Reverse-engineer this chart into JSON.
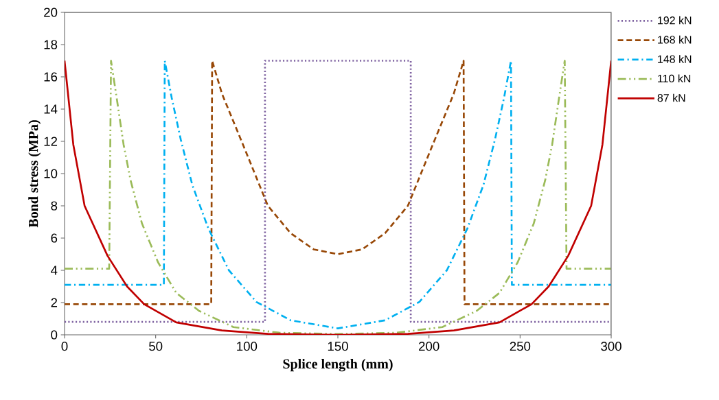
{
  "chart_data": {
    "type": "line",
    "xlabel": "Splice length (mm)",
    "ylabel": "Bond stress (MPa)",
    "xlim": [
      0,
      300
    ],
    "ylim": [
      0,
      20
    ],
    "xticks": [
      0,
      50,
      100,
      150,
      200,
      250,
      300
    ],
    "yticks": [
      0,
      2,
      4,
      6,
      8,
      10,
      12,
      14,
      16,
      18,
      20
    ],
    "grid": false,
    "legend": "right",
    "marker": "none",
    "series": [
      {
        "name": "192 kN",
        "color": "#8064a2",
        "line_style": "dotted",
        "x": [
          0,
          110,
          110,
          190,
          190,
          300
        ],
        "values": [
          0.8,
          0.8,
          17,
          17,
          0.8,
          0.8
        ]
      },
      {
        "name": "168 kN",
        "color": "#984807",
        "line_style": "dashed",
        "x": [
          0,
          80.5,
          81,
          86.4,
          99,
          111.6,
          124.1,
          136.7,
          150,
          163.3,
          175.9,
          188.4,
          201,
          213.6,
          219,
          219.5,
          300
        ],
        "values": [
          1.9,
          1.9,
          17,
          14.95,
          11.5,
          8.0,
          6.3,
          5.3,
          5.0,
          5.3,
          6.3,
          8.0,
          11.5,
          14.95,
          17,
          1.9,
          1.9
        ]
      },
      {
        "name": "148 kN",
        "color": "#00b0f0",
        "line_style": "dashdot",
        "x": [
          0,
          54.5,
          55,
          58.8,
          63.8,
          70.1,
          78.9,
          90.2,
          105.3,
          124.1,
          150,
          175.9,
          194.7,
          209.8,
          221.1,
          229.9,
          236.2,
          241.2,
          245,
          245.5,
          300
        ],
        "values": [
          3.1,
          3.1,
          17,
          14.7,
          12.1,
          9.3,
          6.6,
          4.0,
          2.04,
          0.9,
          0.4,
          0.9,
          2.04,
          4.0,
          6.6,
          9.3,
          12.1,
          14.7,
          17,
          3.1,
          3.1
        ]
      },
      {
        "name": "110 kN",
        "color": "#9bbb59",
        "line_style": "dashdotdot",
        "x": [
          0,
          24.5,
          25.5,
          28.6,
          32.4,
          36.2,
          42.5,
          51.3,
          61.3,
          73.9,
          92.7,
          117.8,
          150,
          182.2,
          207.3,
          226.1,
          238.7,
          248.7,
          257.5,
          263.8,
          267.6,
          271.4,
          274.5,
          275.5,
          300
        ],
        "values": [
          4.1,
          4.1,
          17,
          14.7,
          11.8,
          9.6,
          6.9,
          4.5,
          2.6,
          1.48,
          0.48,
          0.13,
          0.05,
          0.13,
          0.48,
          1.48,
          2.6,
          4.5,
          6.9,
          9.6,
          11.8,
          14.7,
          17,
          4.1,
          4.1
        ]
      },
      {
        "name": "87 kN",
        "color": "#c00000",
        "line_style": "solid",
        "x": [
          0,
          4.8,
          11,
          23.6,
          34.3,
          43.7,
          61.3,
          86.3,
          111.6,
          150,
          188.4,
          213.7,
          238.7,
          256.3,
          265.7,
          276.4,
          289,
          295.2,
          300
        ],
        "values": [
          17,
          11.8,
          8.0,
          4.9,
          3.0,
          1.9,
          0.77,
          0.27,
          0.06,
          0,
          0.06,
          0.27,
          0.77,
          1.9,
          3.0,
          4.9,
          8.0,
          11.8,
          17
        ]
      }
    ]
  }
}
